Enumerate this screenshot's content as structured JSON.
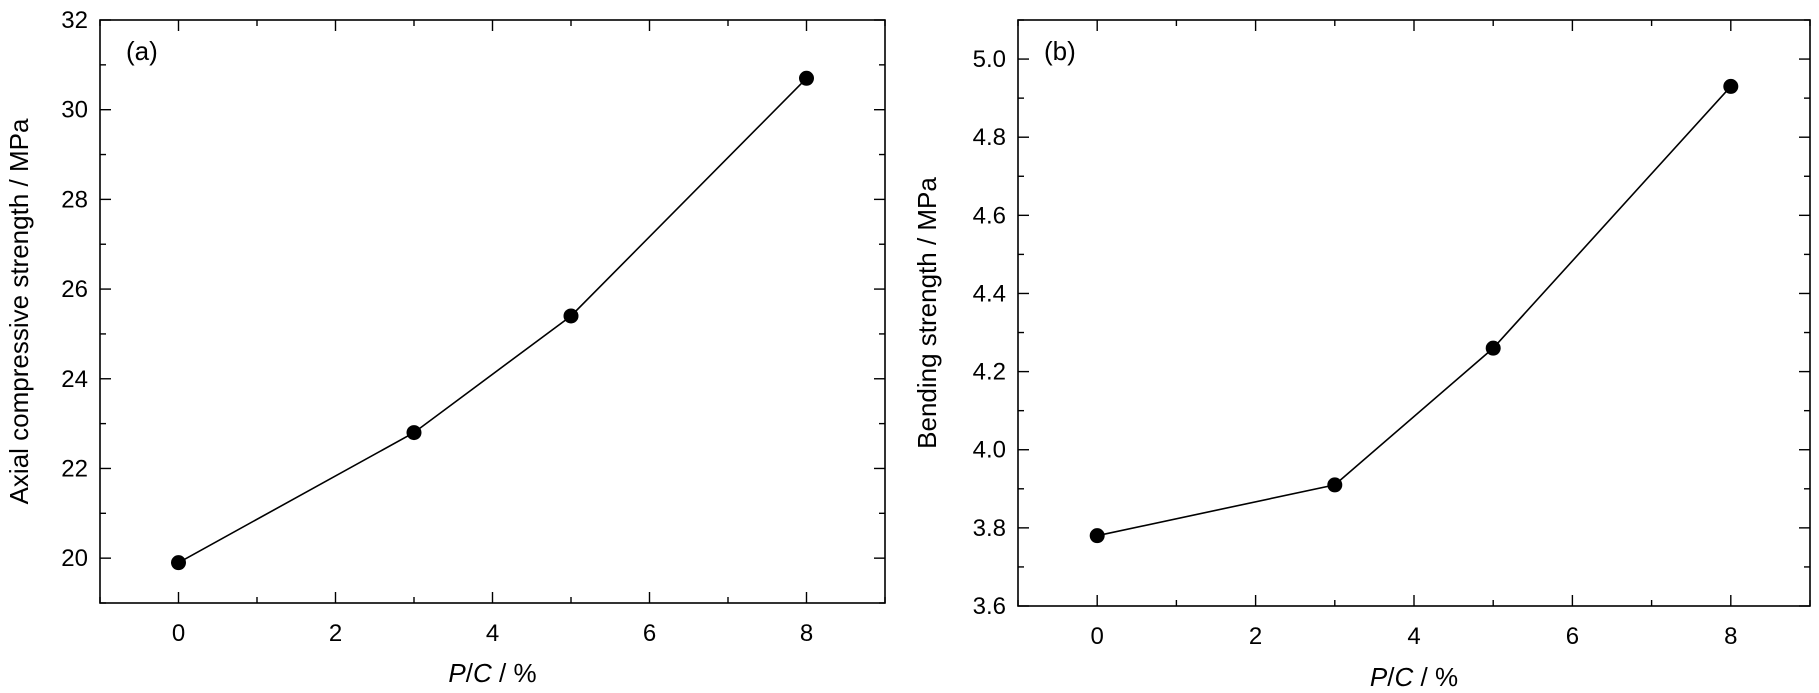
{
  "chart_data": [
    {
      "type": "line",
      "panel_label": "(a)",
      "xlabel_var_p": "P",
      "xlabel_slash": "/",
      "xlabel_var_c": "C",
      "xlabel_unit": " / %",
      "ylabel": "Axial compressive strength / MPa",
      "xlim": [
        -1,
        9
      ],
      "ylim": [
        19,
        32
      ],
      "xticks": [
        0,
        2,
        4,
        6,
        8
      ],
      "yticks": [
        20,
        22,
        24,
        26,
        28,
        30,
        32
      ],
      "xtick_labels": [
        "0",
        "2",
        "4",
        "6",
        "8"
      ],
      "ytick_labels": [
        "20",
        "22",
        "24",
        "26",
        "28",
        "30",
        "32"
      ],
      "series": [
        {
          "x": [
            0,
            3,
            5,
            8
          ],
          "y": [
            19.9,
            22.8,
            25.4,
            30.7
          ]
        }
      ]
    },
    {
      "type": "line",
      "panel_label": "(b)",
      "xlabel_var_p": "P",
      "xlabel_slash": "/",
      "xlabel_var_c": "C",
      "xlabel_unit": " / %",
      "ylabel": "Bending strength / MPa",
      "xlim": [
        -1,
        9
      ],
      "ylim": [
        3.6,
        5.1
      ],
      "xticks": [
        0,
        2,
        4,
        6,
        8
      ],
      "yticks": [
        3.6,
        3.8,
        4.0,
        4.2,
        4.4,
        4.6,
        4.8,
        5.0
      ],
      "xtick_labels": [
        "0",
        "2",
        "4",
        "6",
        "8"
      ],
      "ytick_labels": [
        "3.6",
        "3.8",
        "4.0",
        "4.2",
        "4.4",
        "4.6",
        "4.8",
        "5.0"
      ],
      "series": [
        {
          "x": [
            0,
            3,
            5,
            8
          ],
          "y": [
            3.78,
            3.91,
            4.26,
            4.93
          ]
        }
      ]
    }
  ]
}
